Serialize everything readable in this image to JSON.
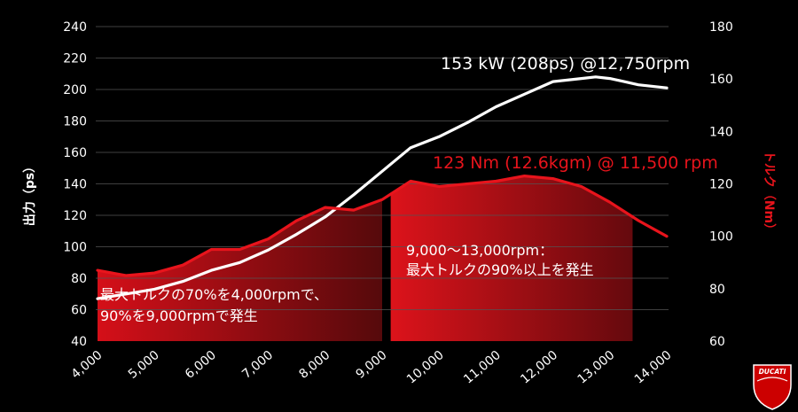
{
  "chart_data": {
    "type": "line",
    "x_ticks": [
      "4,000",
      "5,000",
      "6,000",
      "7,000",
      "8,000",
      "9,000",
      "10,000",
      "11,000",
      "12,000",
      "13,000",
      "14,000"
    ],
    "xlim": [
      4000,
      14000
    ],
    "ylim_left": [
      40,
      240
    ],
    "ylim_right": [
      60,
      180
    ],
    "y_ticks_left": [
      "40",
      "60",
      "80",
      "100",
      "120",
      "140",
      "160",
      "180",
      "200",
      "220",
      "240"
    ],
    "y_ticks_right": [
      "60",
      "80",
      "100",
      "120",
      "140",
      "160",
      "180"
    ],
    "ylabel_left": "出力（ps）",
    "ylabel_right": "トルク（Nm）",
    "grid": true,
    "series": [
      {
        "axis": "left",
        "color": "#ffffff",
        "x": [
          4000,
          4500,
          5000,
          5500,
          6000,
          6500,
          7000,
          7500,
          8000,
          8500,
          9000,
          9500,
          10000,
          10500,
          11000,
          11500,
          12000,
          12500,
          12750,
          13000,
          13250,
          13500,
          14000
        ],
        "y": [
          67,
          70,
          73,
          78,
          85,
          90,
          98,
          108,
          119,
          133,
          148,
          163,
          170,
          179,
          189,
          197,
          205,
          207,
          208,
          207,
          205,
          203,
          201
        ]
      },
      {
        "axis": "right",
        "color": "#e8141c",
        "x": [
          4000,
          4500,
          5000,
          5500,
          6000,
          6500,
          7000,
          7500,
          8000,
          8500,
          9000,
          9500,
          10000,
          10500,
          11000,
          11500,
          12000,
          12500,
          13000,
          13500,
          14000
        ],
        "y": [
          87,
          85,
          86,
          89,
          95,
          95,
          99,
          106,
          111,
          110,
          114,
          121,
          119,
          120,
          121,
          123,
          122,
          119,
          113,
          106,
          100
        ]
      }
    ],
    "annotations": {
      "power_peak": "153 kW (208ps) @12,750rpm",
      "torque_peak": "123 Nm (12.6kgm) @ 11,500 rpm",
      "band_left_line1": "最大トルクの70%を4,000rpmで、",
      "band_left_line2": "90%を9,000rpmで発生",
      "band_right_line1": "9,000〜13,000rpm：",
      "band_right_line2": "最大トルクの90%以上を発生"
    }
  },
  "colors": {
    "power": "#ffffff",
    "torque": "#e8141c",
    "background": "#000000",
    "grid": "#555555"
  },
  "logo": {
    "text": "DUCATI",
    "icon": "ducati-shield-logo"
  }
}
